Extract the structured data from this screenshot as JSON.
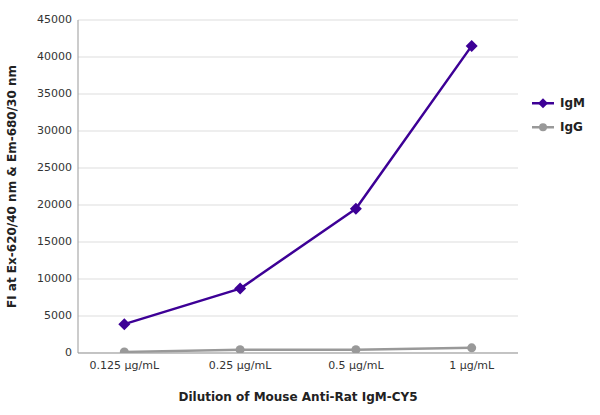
{
  "chart_data": {
    "type": "line",
    "categories": [
      "0.125 μg/mL",
      "0.25 μg/mL",
      "0.5 μg/mL",
      "1 μg/mL"
    ],
    "series": [
      {
        "name": "IgM",
        "color": "#3d0096",
        "marker": "diamond",
        "values": [
          3900,
          8700,
          19500,
          41500
        ]
      },
      {
        "name": "IgG",
        "color": "#999999",
        "marker": "circle",
        "values": [
          150,
          450,
          450,
          700
        ]
      }
    ],
    "xlabel": "Dilution of Mouse Anti-Rat IgM-CY5",
    "ylabel": "FI at Ex-620/40 nm & Em-680/30 nm",
    "ylim": [
      0,
      45000
    ],
    "yticks": [
      0,
      5000,
      10000,
      15000,
      20000,
      25000,
      30000,
      35000,
      40000,
      45000
    ],
    "grid": true,
    "legend": "right"
  }
}
